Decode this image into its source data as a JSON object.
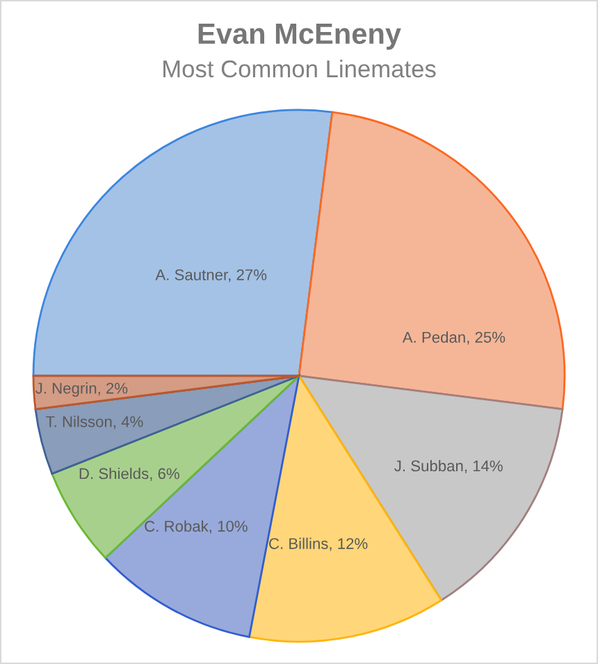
{
  "chart_data": {
    "type": "pie",
    "title": "Evan McEneny",
    "subtitle": "Most Common Linemates",
    "categories": [
      "A. Sautner",
      "A. Pedan",
      "J. Subban",
      "C. Billins",
      "C. Robak",
      "D. Shields",
      "T. Nilsson",
      "J. Negrin"
    ],
    "values": [
      27,
      25,
      14,
      12,
      10,
      6,
      4,
      2
    ],
    "colors": [
      "#a4c2e6",
      "#f5b697",
      "#c8c8c8",
      "#ffd679",
      "#98aadb",
      "#a8d08d",
      "#8a9dba",
      "#d49c84"
    ],
    "value_labels": [
      "27%",
      "25%",
      "14%",
      "12%",
      "10%",
      "6%",
      "4%",
      "2%"
    ]
  }
}
